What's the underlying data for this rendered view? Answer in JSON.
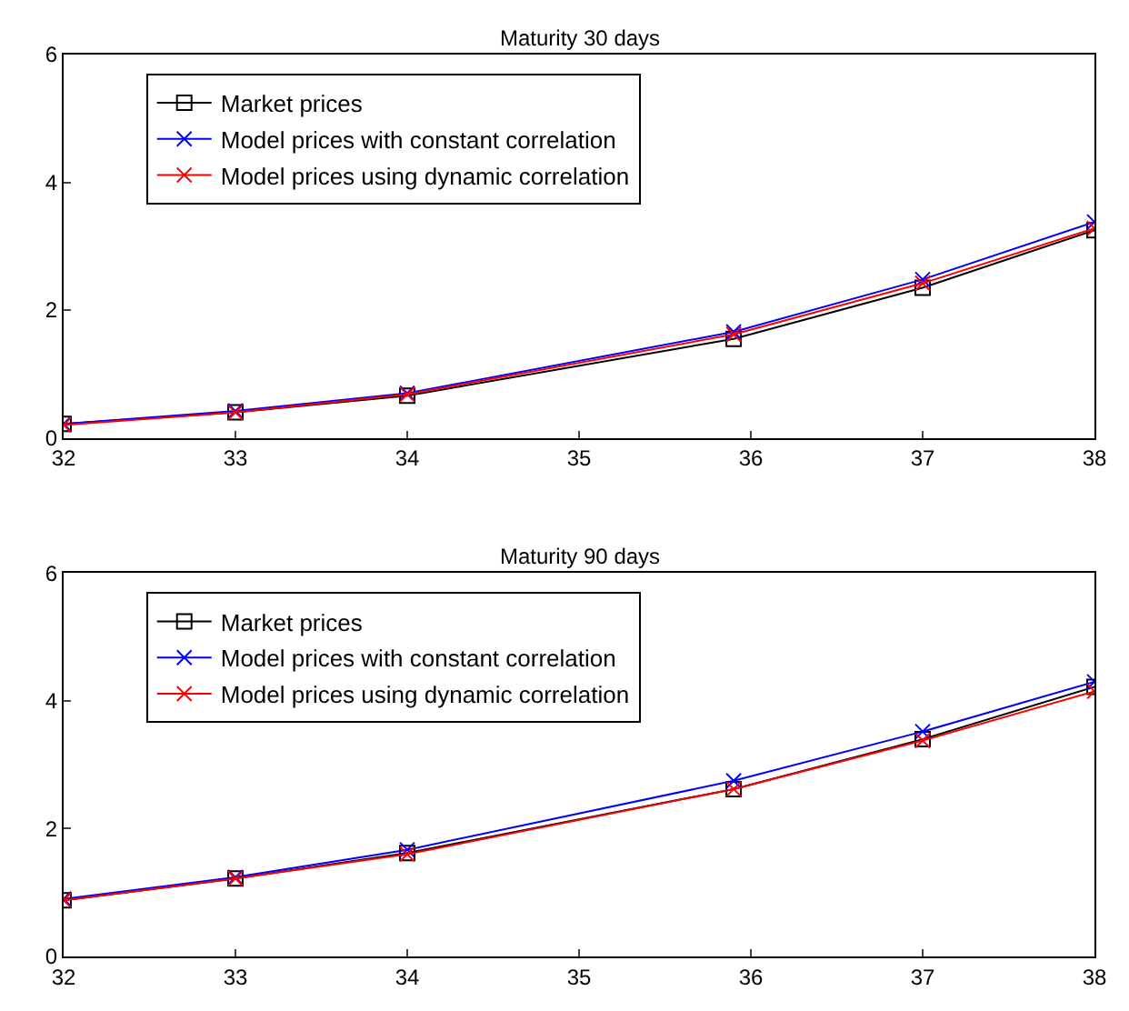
{
  "chart_data": [
    {
      "type": "line",
      "title": "Maturity 30 days",
      "x": [
        32,
        33,
        34,
        35.9,
        37,
        38
      ],
      "xlim": [
        32,
        38
      ],
      "xticks": [
        32,
        33,
        34,
        35,
        36,
        37,
        38
      ],
      "ylim": [
        0,
        6
      ],
      "yticks": [
        0,
        2,
        4,
        6
      ],
      "legend": "top left",
      "line_style": "solid",
      "series": [
        {
          "name": "Market prices",
          "color": "#000000",
          "marker": "square",
          "values": [
            0.22,
            0.4,
            0.66,
            1.55,
            2.35,
            3.25
          ]
        },
        {
          "name": "Model prices with constant correlation",
          "color": "#0000ff",
          "marker": "cross",
          "values": [
            0.22,
            0.42,
            0.7,
            1.66,
            2.48,
            3.38
          ]
        },
        {
          "name": "Model prices using dynamic correlation",
          "color": "#ff0000",
          "marker": "cross",
          "values": [
            0.2,
            0.4,
            0.68,
            1.62,
            2.42,
            3.28
          ]
        }
      ]
    },
    {
      "type": "line",
      "title": "Maturity 90 days",
      "x": [
        32,
        33,
        34,
        35.9,
        37,
        38
      ],
      "xlim": [
        32,
        38
      ],
      "xticks": [
        32,
        33,
        34,
        35,
        36,
        37,
        38
      ],
      "ylim": [
        0,
        6
      ],
      "yticks": [
        0,
        2,
        4,
        6
      ],
      "legend": "top left",
      "line_style": "solid",
      "series": [
        {
          "name": "Market prices",
          "color": "#000000",
          "marker": "square",
          "values": [
            0.88,
            1.22,
            1.62,
            2.62,
            3.4,
            4.22
          ]
        },
        {
          "name": "Model prices with constant correlation",
          "color": "#0000ff",
          "marker": "cross",
          "values": [
            0.9,
            1.24,
            1.67,
            2.75,
            3.52,
            4.3
          ]
        },
        {
          "name": "Model prices using dynamic correlation",
          "color": "#ff0000",
          "marker": "cross",
          "values": [
            0.88,
            1.22,
            1.6,
            2.62,
            3.38,
            4.15
          ]
        }
      ]
    }
  ]
}
